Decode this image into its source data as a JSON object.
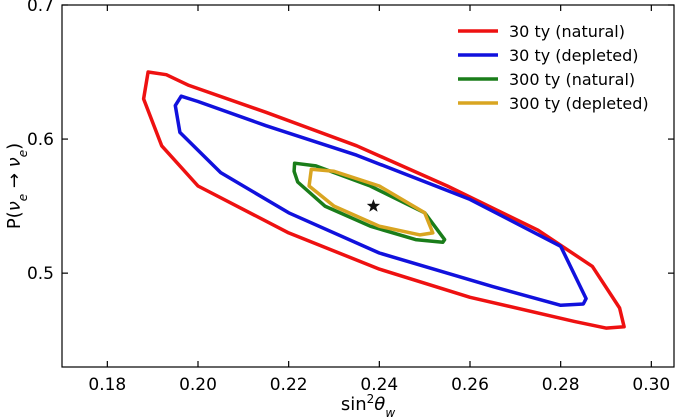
{
  "chart_data": {
    "type": "line",
    "xlabel": "sin²θ_w",
    "ylabel": "P(ν_e → ν_e)",
    "xlim": [
      0.17,
      0.305
    ],
    "ylim": [
      0.43,
      0.7
    ],
    "xticks": [
      0.18,
      0.2,
      0.22,
      0.24,
      0.26,
      0.28,
      0.3
    ],
    "xtick_labels": [
      "0.18",
      "0.20",
      "0.22",
      "0.24",
      "0.26",
      "0.28",
      "0.30"
    ],
    "yticks": [
      0.5,
      0.6,
      0.7
    ],
    "ytick_labels": [
      "0.5",
      "0.6",
      "0.7"
    ],
    "grid": false,
    "legend_position": "top-right",
    "marker": {
      "x": 0.2387,
      "y": 0.55,
      "shape": "star"
    },
    "series": [
      {
        "name": "30 ty (natural)",
        "color": "#ee1111",
        "points": [
          [
            0.189,
            0.65
          ],
          [
            0.193,
            0.648
          ],
          [
            0.198,
            0.64
          ],
          [
            0.215,
            0.62
          ],
          [
            0.235,
            0.595
          ],
          [
            0.255,
            0.565
          ],
          [
            0.275,
            0.532
          ],
          [
            0.287,
            0.505
          ],
          [
            0.293,
            0.474
          ],
          [
            0.294,
            0.46
          ],
          [
            0.29,
            0.459
          ],
          [
            0.283,
            0.464
          ],
          [
            0.26,
            0.482
          ],
          [
            0.24,
            0.503
          ],
          [
            0.22,
            0.53
          ],
          [
            0.2,
            0.565
          ],
          [
            0.192,
            0.595
          ],
          [
            0.188,
            0.63
          ],
          [
            0.189,
            0.65
          ]
        ]
      },
      {
        "name": "30 ty (depleted)",
        "color": "#1111dd",
        "points": [
          [
            0.1963,
            0.632
          ],
          [
            0.2,
            0.628
          ],
          [
            0.215,
            0.61
          ],
          [
            0.235,
            0.588
          ],
          [
            0.26,
            0.555
          ],
          [
            0.28,
            0.52
          ],
          [
            0.2856,
            0.481
          ],
          [
            0.285,
            0.477
          ],
          [
            0.28,
            0.476
          ],
          [
            0.265,
            0.49
          ],
          [
            0.24,
            0.515
          ],
          [
            0.22,
            0.545
          ],
          [
            0.205,
            0.575
          ],
          [
            0.196,
            0.605
          ],
          [
            0.195,
            0.625
          ],
          [
            0.1963,
            0.632
          ]
        ]
      },
      {
        "name": "300 ty (natural)",
        "color": "#1a7d1a",
        "points": [
          [
            0.2213,
            0.582
          ],
          [
            0.226,
            0.58
          ],
          [
            0.238,
            0.565
          ],
          [
            0.25,
            0.545
          ],
          [
            0.2544,
            0.525
          ],
          [
            0.254,
            0.523
          ],
          [
            0.248,
            0.525
          ],
          [
            0.238,
            0.535
          ],
          [
            0.228,
            0.55
          ],
          [
            0.222,
            0.568
          ],
          [
            0.2212,
            0.576
          ],
          [
            0.2213,
            0.582
          ]
        ]
      },
      {
        "name": "300 ty (depleted)",
        "color": "#d9a521",
        "points": [
          [
            0.225,
            0.5775
          ],
          [
            0.23,
            0.576
          ],
          [
            0.24,
            0.565
          ],
          [
            0.25,
            0.545
          ],
          [
            0.2518,
            0.53
          ],
          [
            0.249,
            0.5285
          ],
          [
            0.24,
            0.535
          ],
          [
            0.23,
            0.55
          ],
          [
            0.2245,
            0.565
          ],
          [
            0.225,
            0.5775
          ]
        ]
      }
    ]
  }
}
